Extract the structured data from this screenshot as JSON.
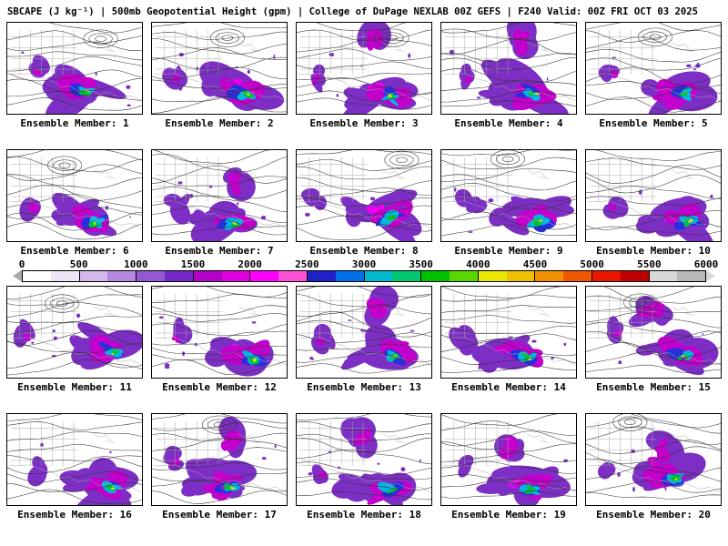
{
  "header": {
    "title": "SBCAPE (J kg⁻¹) | 500mb Geopotential Height (gpm) | College of DuPage NEXLAB 00Z GEFS | F240 Valid: 00Z FRI OCT 03 2025"
  },
  "panels": {
    "label_prefix": "Ensemble Member:",
    "members": [
      1,
      2,
      3,
      4,
      5,
      6,
      7,
      8,
      9,
      10,
      11,
      12,
      13,
      14,
      15,
      16,
      17,
      18,
      19,
      20
    ]
  },
  "colorbar": {
    "ticks": [
      "0",
      "500",
      "1000",
      "1500",
      "2000",
      "2500",
      "3000",
      "3500",
      "4000",
      "4500",
      "5000",
      "5500",
      "6000"
    ],
    "colors": [
      "#ffffff",
      "#ebe5f5",
      "#d4b8ec",
      "#b488e0",
      "#9458d4",
      "#7428c8",
      "#b400c8",
      "#e000e0",
      "#ff00ff",
      "#ff50d8",
      "#2020c8",
      "#0070e8",
      "#00b8d0",
      "#00c870",
      "#00c000",
      "#58d800",
      "#e8e800",
      "#f0c000",
      "#f09000",
      "#f05800",
      "#e81800",
      "#c00000",
      "#d8d8d8",
      "#b8b8b8"
    ],
    "arrow_left_color": "#a8a8a8",
    "arrow_right_color": "#d8d8d8"
  },
  "map_style": {
    "cape_palette": [
      "#7d2ec4",
      "#c400cc",
      "#f000f0",
      "#2830dc",
      "#00b6e0",
      "#00c23a",
      "#e8e800"
    ],
    "contour_color": "#333333",
    "geography_color": "#a8a8a8",
    "panel_border_color": "#000000"
  }
}
